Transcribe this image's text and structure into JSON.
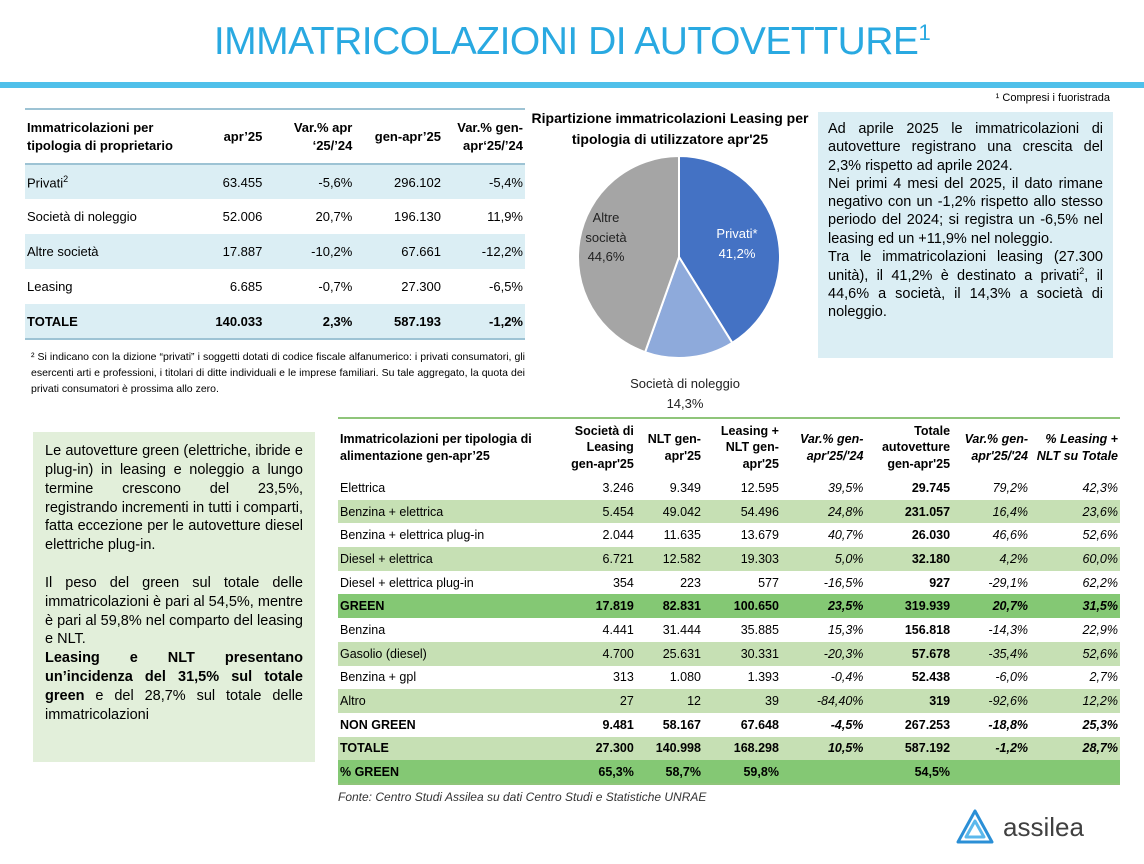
{
  "title": "IMMATRICOLAZIONI DI AUTOVETTURE",
  "title_sup": "1",
  "footnote1": "¹ Compresi i fuoristrada",
  "owner_table": {
    "headers": [
      "Immatricolazioni per tipologia di proprietario",
      "apr’25",
      "Var.% apr ‘25/’24",
      "gen-apr’25",
      "Var.% gen-apr‘25/’24"
    ],
    "rows": [
      {
        "label": "Privati",
        "sup": "2",
        "apr": "63.455",
        "var_apr": "-5,6%",
        "genapr": "296.102",
        "var_genapr": "-5,4%"
      },
      {
        "label": "Società di noleggio",
        "apr": "52.006",
        "var_apr": "20,7%",
        "genapr": "196.130",
        "var_genapr": "11,9%"
      },
      {
        "label": "Altre società",
        "apr": "17.887",
        "var_apr": "-10,2%",
        "genapr": "67.661",
        "var_genapr": "-12,2%"
      },
      {
        "label": "Leasing",
        "apr": "6.685",
        "var_apr": "-0,7%",
        "genapr": "27.300",
        "var_genapr": "-6,5%"
      },
      {
        "label": "TOTALE",
        "apr": "140.033",
        "var_apr": "2,3%",
        "genapr": "587.193",
        "var_genapr": "-1,2%"
      }
    ]
  },
  "footnote2": "² Si indicano con la dizione “privati” i soggetti dotati di codice fiscale alfanumerico: i privati consumatori, gli esercenti arti e professioni, i titolari di ditte individuali e le imprese familiari. Su tale aggregato, la quota dei privati consumatori è prossima allo zero.",
  "chart_data": {
    "type": "pie",
    "title": "Ripartizione immatricolazioni Leasing per tipologia di utilizzatore apr'25",
    "slices": [
      {
        "label": "Privati*",
        "value": 41.2,
        "value_label": "41,2%",
        "color": "#4472c4"
      },
      {
        "label": "Società di noleggio",
        "value": 14.3,
        "value_label": "14,3%",
        "color": "#8eaadb"
      },
      {
        "label": "Altre società",
        "value": 44.6,
        "value_label": "44,6%",
        "color": "#a5a5a5"
      }
    ]
  },
  "box1": {
    "p1": "Ad aprile 2025 le immatricolazioni di autovetture registrano una crescita del 2,3% rispetto ad aprile 2024.",
    "p2": "Nei primi 4 mesi del 2025, il dato rimane negativo con un -1,2% rispetto allo stesso periodo del 2024; si registra un -6,5% nel leasing ed un +11,9% nel noleggio.",
    "p3a": "Tra le immatricolazioni leasing (27.300 unità), il 41,2% è destinato a privati",
    "p3sup": "2",
    "p3b": ", il 44,6% a società, il 14,3% a società di noleggio."
  },
  "box2": {
    "p1": "Le autovetture green (elettriche, ibride e plug-in) in leasing e noleggio a lungo termine crescono del 23,5%, registrando incrementi in tutti i comparti, fatta eccezione per le autovetture diesel elettriche plug-in.",
    "p2": "Il peso del green sul totale delle immatricolazioni è pari al 54,5%, mentre è pari al 59,8% nel comparto del leasing e NLT.",
    "p3_bold": "Leasing e NLT presentano un’incidenza del 31,5% sul totale green",
    "p3_rest": " e del 28,7% sul totale delle immatricolazioni"
  },
  "fuel_table": {
    "headers": [
      "Immatricolazioni per tipologia di alimentazione gen-apr’25",
      "Società di Leasing gen-apr'25",
      "NLT gen-apr'25",
      "Leasing + NLT gen-apr'25",
      "Var.% gen-apr'25/'24",
      "Totale autovetture gen-apr'25",
      "Var.% gen-apr'25/'24",
      "% Leasing + NLT su Totale"
    ],
    "rows": [
      [
        "Elettrica",
        "3.246",
        "9.349",
        "12.595",
        "39,5%",
        "29.745",
        "79,2%",
        "42,3%"
      ],
      [
        "Benzina + elettrica",
        "5.454",
        "49.042",
        "54.496",
        "24,8%",
        "231.057",
        "16,4%",
        "23,6%"
      ],
      [
        "Benzina + elettrica plug-in",
        "2.044",
        "11.635",
        "13.679",
        "40,7%",
        "26.030",
        "46,6%",
        "52,6%"
      ],
      [
        "Diesel + elettrica",
        "6.721",
        "12.582",
        "19.303",
        "5,0%",
        "32.180",
        "4,2%",
        "60,0%"
      ],
      [
        "Diesel + elettrica plug-in",
        "354",
        "223",
        "577",
        "-16,5%",
        "927",
        "-29,1%",
        "62,2%"
      ],
      [
        "GREEN",
        "17.819",
        "82.831",
        "100.650",
        "23,5%",
        "319.939",
        "20,7%",
        "31,5%"
      ],
      [
        "Benzina",
        "4.441",
        "31.444",
        "35.885",
        "15,3%",
        "156.818",
        "-14,3%",
        "22,9%"
      ],
      [
        "Gasolio (diesel)",
        "4.700",
        "25.631",
        "30.331",
        "-20,3%",
        "57.678",
        "-35,4%",
        "52,6%"
      ],
      [
        "Benzina + gpl",
        "313",
        "1.080",
        "1.393",
        "-0,4%",
        "52.438",
        "-6,0%",
        "2,7%"
      ],
      [
        "Altro",
        "27",
        "12",
        "39",
        "-84,40%",
        "319",
        "-92,6%",
        "12,2%"
      ],
      [
        "NON GREEN",
        "9.481",
        "58.167",
        "67.648",
        "-4,5%",
        "267.253",
        "-18,8%",
        "25,3%"
      ],
      [
        "TOTALE",
        "27.300",
        "140.998",
        "168.298",
        "10,5%",
        "587.192",
        "-1,2%",
        "28,7%"
      ],
      [
        "% GREEN",
        "65,3%",
        "58,7%",
        "59,8%",
        "",
        "54,5%",
        "",
        ""
      ]
    ]
  },
  "source": "Fonte: Centro Studi Assilea su dati Centro Studi e Statistiche UNRAE",
  "logo": "assilea"
}
